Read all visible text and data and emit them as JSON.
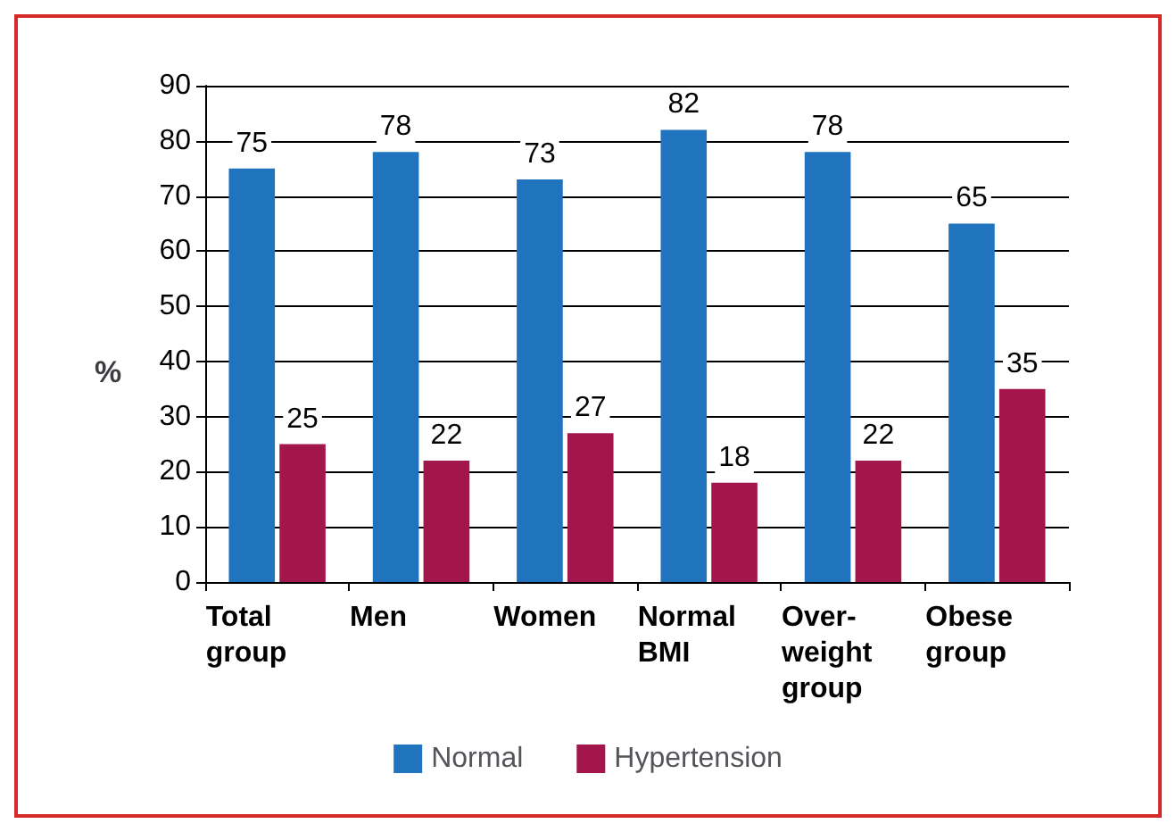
{
  "chart_data": {
    "type": "bar",
    "ylabel": "%",
    "categories": [
      "Total\ngroup",
      "Men",
      "Women",
      "Normal\nBMI",
      "Over-\nweight\ngroup",
      "Obese\ngroup"
    ],
    "series": [
      {
        "name": "Normal",
        "color": "#1f74bd",
        "values": [
          75,
          78,
          73,
          82,
          78,
          65
        ]
      },
      {
        "name": "Hypertension",
        "color": "#a3164c",
        "values": [
          25,
          22,
          27,
          18,
          22,
          35
        ]
      }
    ],
    "ylim": [
      0,
      90
    ],
    "yticks": [
      0,
      10,
      20,
      30,
      40,
      50,
      60,
      70,
      80,
      90
    ],
    "grid": "y",
    "legend": "bottom",
    "data_labels": true
  }
}
